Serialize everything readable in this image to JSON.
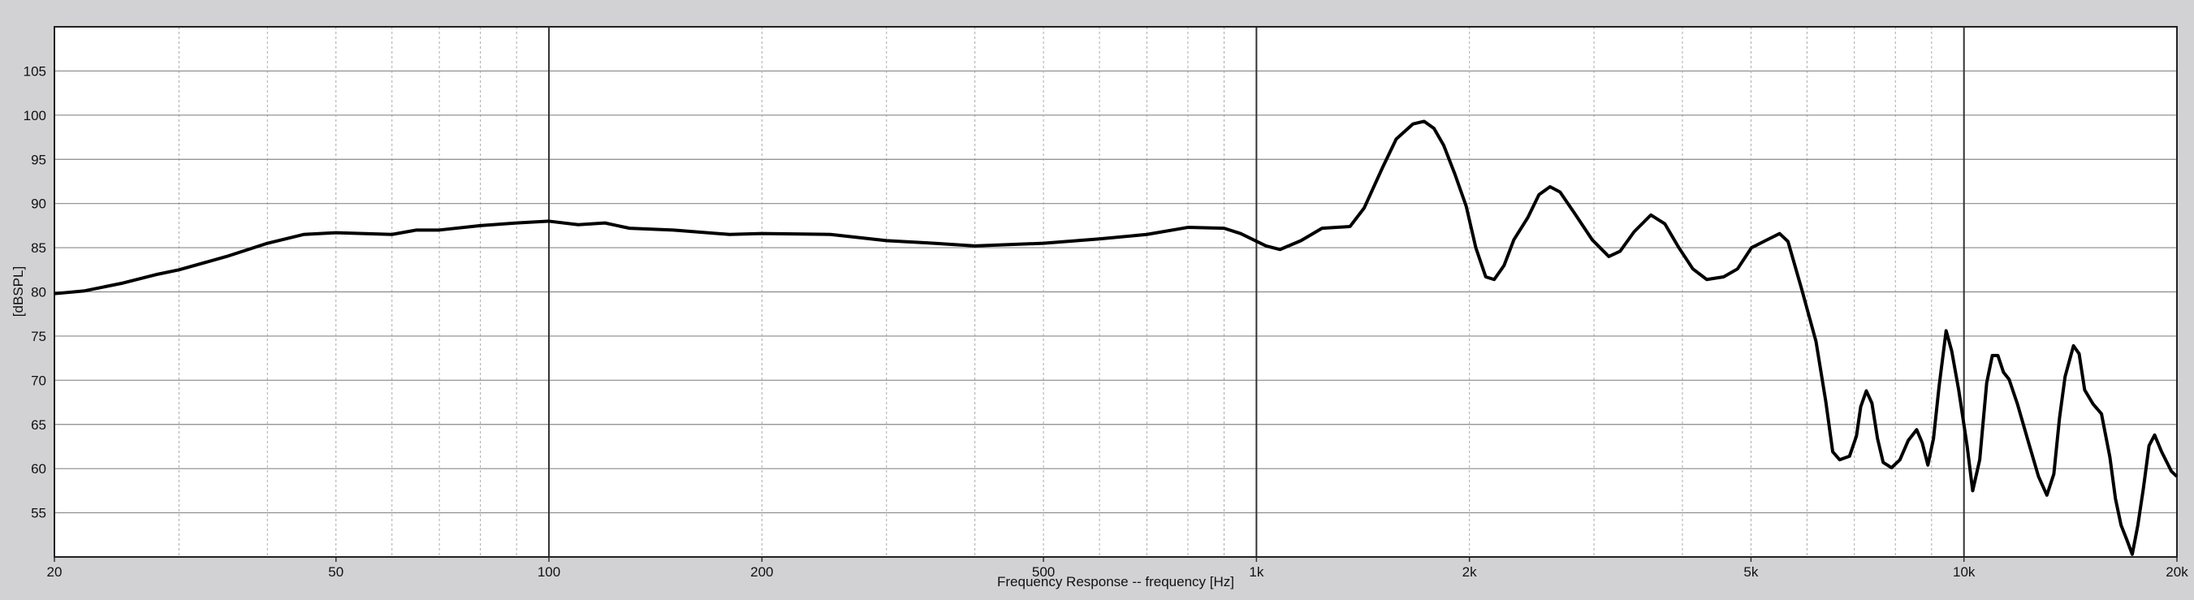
{
  "chart_data": {
    "type": "line",
    "x_label": "Frequency Response -- frequency [Hz]",
    "y_label": "[dBSPL]",
    "xscale": "log",
    "grid": true,
    "xlim": [
      20,
      20000
    ],
    "xticks": [
      20,
      50,
      100,
      200,
      500,
      {
        "value": 1000,
        "label": "1k"
      },
      {
        "value": 2000,
        "label": "2k"
      },
      {
        "value": 5000,
        "label": "5k"
      },
      {
        "value": 10000,
        "label": "10k"
      },
      {
        "value": 20000,
        "label": "20k"
      }
    ],
    "ylim": [
      50,
      110
    ],
    "yticks": [
      55,
      60,
      65,
      70,
      75,
      80,
      85,
      90,
      95,
      100,
      105
    ],
    "series": [
      {
        "color": "#000000",
        "x": [
          20,
          22,
          25,
          28,
          30,
          35,
          40,
          45,
          50,
          60,
          65,
          70,
          80,
          90,
          100,
          110,
          120,
          130,
          150,
          180,
          200,
          250,
          300,
          350,
          400,
          500,
          600,
          700,
          800,
          900,
          950,
          1032,
          1080,
          1156,
          1238,
          1356,
          1420,
          1506,
          1576,
          1664,
          1726,
          1782,
          1839,
          1908,
          1979,
          2042,
          2109,
          2168,
          2239,
          2311,
          2418,
          2508,
          2600,
          2686,
          2810,
          2982,
          3148,
          3266,
          3418,
          3610,
          3778,
          3954,
          4138,
          4330,
          4574,
          4786,
          5008,
          5242,
          5488,
          5640,
          5902,
          6178,
          6378,
          6524,
          6674,
          6890,
          7048,
          7146,
          7278,
          7412,
          7548,
          7688,
          7900,
          8118,
          8344,
          8574,
          8732,
          8892,
          9056,
          9222,
          9436,
          9610,
          9830,
          10102,
          10288,
          10526,
          10768,
          10966,
          11168,
          11372,
          11582,
          11902,
          12344,
          12746,
          13098,
          13398,
          13646,
          13896,
          14282,
          14546,
          14812,
          15224,
          15644,
          16078,
          16372,
          16674,
          16980,
          17292,
          17610,
          17934,
          18264,
          18598,
          19028,
          19640,
          20000
        ],
        "values": [
          79.8,
          80.1,
          81,
          82,
          82.5,
          84,
          85.5,
          86.5,
          86.7,
          86.5,
          87,
          87,
          87.5,
          87.8,
          88,
          87.6,
          87.8,
          87.2,
          87,
          86.5,
          86.6,
          86.5,
          85.8,
          85.5,
          85.2,
          85.5,
          86,
          86.5,
          87.3,
          87.2,
          86.6,
          85.2,
          84.8,
          85.8,
          87.2,
          87.4,
          89.5,
          94,
          97.3,
          99,
          99.3,
          98.5,
          96.6,
          93.3,
          89.7,
          85,
          81.7,
          81.4,
          83,
          85.9,
          88.4,
          91,
          91.9,
          91.3,
          89,
          85.9,
          84,
          84.6,
          86.8,
          88.7,
          87.7,
          85,
          82.6,
          81.4,
          81.7,
          82.6,
          85,
          85.8,
          86.6,
          85.7,
          80.2,
          74.4,
          67.6,
          61.9,
          61,
          61.4,
          63.7,
          67,
          68.8,
          67.4,
          63.4,
          60.7,
          60.1,
          61,
          63.2,
          64.4,
          62.9,
          60.4,
          63.4,
          69.3,
          75.6,
          73.3,
          68.9,
          62.6,
          57.5,
          61,
          69.7,
          72.8,
          72.8,
          70.9,
          70.1,
          67.3,
          62.9,
          59.1,
          57,
          59.4,
          65.7,
          70.4,
          73.9,
          73,
          68.9,
          67.3,
          66.2,
          61.3,
          56.6,
          53.6,
          52,
          50.3,
          53.6,
          57.8,
          62.6,
          63.8,
          61.9,
          59.7,
          59.1
        ]
      }
    ]
  }
}
